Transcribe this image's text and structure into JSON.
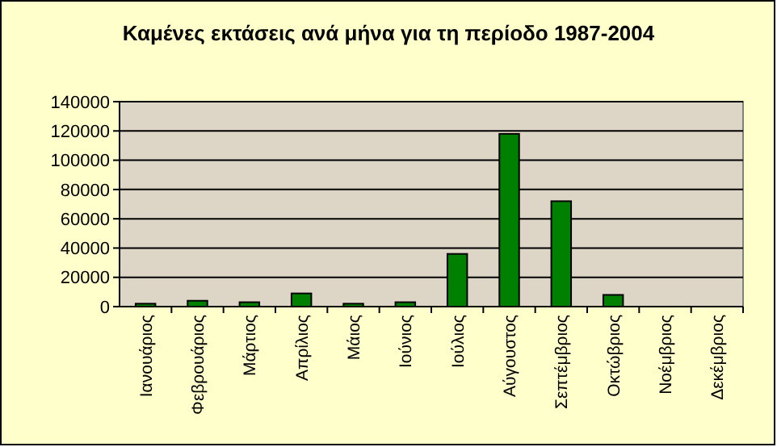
{
  "chart_data": {
    "type": "bar",
    "title": "Καμένες εκτάσεις ανά μήνα για τη περίοδο 1987-2004",
    "categories": [
      "Ιανουάριος",
      "Φεβρουάριος",
      "Μάρτιος",
      "Απρίλιος",
      "Μάιος",
      "Ιούνιος",
      "Ιούλιος",
      "Αύγουστος",
      "Σεπτέμβριος",
      "Οκτώβριος",
      "Νοέμβριος",
      "Δεκέμβριος"
    ],
    "values": [
      2000,
      4000,
      3000,
      9000,
      2000,
      3000,
      36000,
      118000,
      72000,
      8000,
      0,
      0
    ],
    "color": "#008000",
    "ylim": [
      0,
      140000
    ],
    "yticks": [
      0,
      20000,
      40000,
      60000,
      80000,
      100000,
      120000,
      140000
    ],
    "grid": "y"
  }
}
